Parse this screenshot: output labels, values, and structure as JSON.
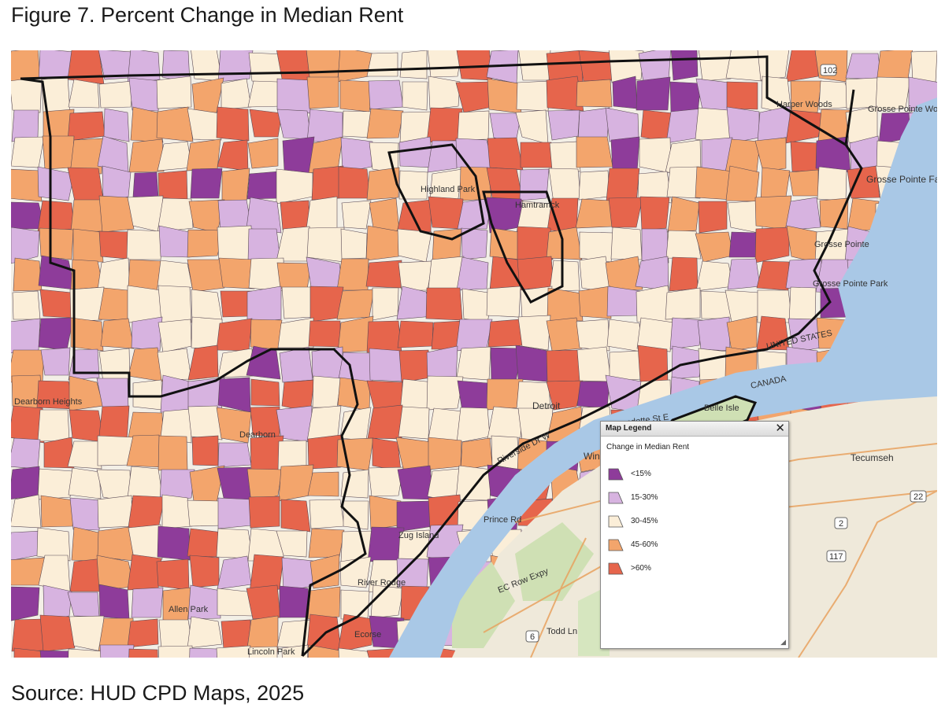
{
  "figure": {
    "title": "Figure 7. Percent Change in Median Rent",
    "source": "Source: HUD CPD Maps, 2025"
  },
  "colors": {
    "lt15": "#8e3c9a",
    "r15_30": "#d7b3e0",
    "r30_45": "#fbeed8",
    "r45_60": "#f3a56c",
    "gt60": "#e6654c",
    "water": "#a9c8e6",
    "land": "#f3efe6",
    "park": "#cfe0b4",
    "boundary": "#111111"
  },
  "legend": {
    "header": "Map Legend",
    "close_glyph": "✕",
    "subtitle": "Change in Median Rent",
    "items": [
      {
        "label": "<15%",
        "color": "#8e3c9a"
      },
      {
        "label": "15-30%",
        "color": "#d7b3e0"
      },
      {
        "label": "30-45%",
        "color": "#fbeed8"
      },
      {
        "label": "45-60%",
        "color": "#f3a56c"
      },
      {
        "label": ">60%",
        "color": "#e6654c"
      }
    ],
    "resize_glyph": "◢"
  },
  "map_labels": {
    "highland_park": "Highland Park",
    "hamtramck": "Hamtramck",
    "harper_woods": "Harper Woods",
    "grosse_pointe_woods": "Grosse Pointe Woods",
    "grosse_pointe_farms": "Grosse Pointe Farms",
    "grosse_pointe": "Grosse Pointe",
    "grosse_pointe_park": "Grosse Pointe Park",
    "belle_isle": "Belle Isle",
    "detroit": "Detroit",
    "windsor": "Win",
    "dearborn": "Dearborn",
    "dearborn_heights": "Dearborn Heights",
    "allen_park": "Allen Park",
    "lincoln_park": "Lincoln Park",
    "river_rouge": "River Rouge",
    "zug_island": "Zug Island",
    "ecorse": "Ecorse",
    "united_states": "UNITED STATES",
    "canada": "CANADA",
    "tecumseh": "Tecumseh",
    "wyandotte_st": "Wyandotte St E",
    "riverside_dr": "Riverside Dr W",
    "prince_rd": "Prince Rd",
    "todd_ln": "Todd Ln",
    "ec_row": "EC Row Expy",
    "shield_102": "102",
    "shield_2": "2",
    "shield_22": "22",
    "shield_117": "117",
    "shield_6": "6"
  }
}
